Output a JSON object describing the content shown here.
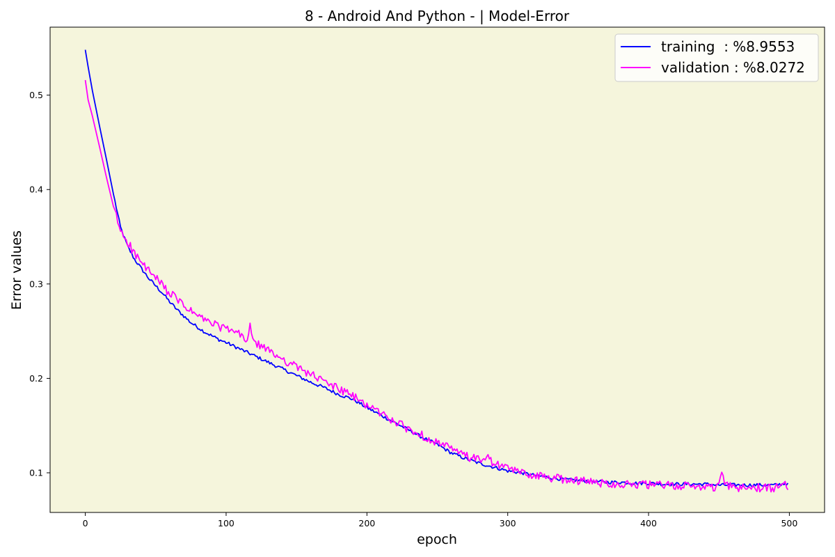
{
  "chart_data": {
    "type": "line",
    "title": "8 - Android And Python - | Model-Error",
    "xlabel": "epoch",
    "ylabel": "Error values",
    "xlim": [
      -25,
      525
    ],
    "ylim": [
      0.058,
      0.572
    ],
    "xticks": [
      0,
      100,
      200,
      300,
      400,
      500
    ],
    "yticks": [
      0.1,
      0.2,
      0.3,
      0.4,
      0.5
    ],
    "grid": false,
    "legend_position": "top-right",
    "background_color": "#f5f5dc",
    "series": [
      {
        "name": "training  : %8.9553",
        "color": "#0000ff",
        "x": [
          0,
          2,
          5,
          10,
          15,
          20,
          25,
          30,
          35,
          40,
          45,
          50,
          55,
          60,
          65,
          70,
          75,
          80,
          85,
          90,
          95,
          100,
          110,
          120,
          130,
          140,
          150,
          160,
          170,
          180,
          190,
          200,
          210,
          220,
          230,
          240,
          250,
          260,
          270,
          280,
          290,
          300,
          310,
          320,
          330,
          340,
          350,
          360,
          370,
          380,
          390,
          400,
          410,
          420,
          430,
          440,
          450,
          460,
          470,
          480,
          490,
          499
        ],
        "values": [
          0.548,
          0.53,
          0.505,
          0.468,
          0.432,
          0.395,
          0.36,
          0.34,
          0.326,
          0.316,
          0.306,
          0.298,
          0.29,
          0.281,
          0.273,
          0.266,
          0.259,
          0.254,
          0.249,
          0.245,
          0.241,
          0.238,
          0.231,
          0.224,
          0.217,
          0.21,
          0.203,
          0.196,
          0.19,
          0.183,
          0.178,
          0.169,
          0.161,
          0.153,
          0.145,
          0.137,
          0.13,
          0.121,
          0.115,
          0.11,
          0.106,
          0.102,
          0.1,
          0.097,
          0.095,
          0.093,
          0.092,
          0.091,
          0.09,
          0.09,
          0.089,
          0.089,
          0.088,
          0.088,
          0.088,
          0.088,
          0.087,
          0.087,
          0.087,
          0.087,
          0.087,
          0.089
        ]
      },
      {
        "name": "validation : %8.0272",
        "color": "#ff00ff",
        "x": [
          0,
          2,
          5,
          10,
          15,
          20,
          25,
          28,
          30,
          35,
          40,
          45,
          50,
          55,
          60,
          65,
          70,
          75,
          80,
          85,
          90,
          95,
          100,
          105,
          110,
          115,
          117,
          120,
          125,
          130,
          135,
          140,
          145,
          150,
          155,
          160,
          165,
          170,
          175,
          180,
          185,
          190,
          195,
          200,
          210,
          220,
          230,
          240,
          250,
          260,
          270,
          280,
          285,
          290,
          300,
          310,
          320,
          330,
          340,
          350,
          360,
          370,
          380,
          390,
          400,
          410,
          420,
          430,
          440,
          450,
          452,
          455,
          460,
          470,
          480,
          490,
          497,
          499
        ],
        "values": [
          0.516,
          0.495,
          0.478,
          0.446,
          0.413,
          0.382,
          0.356,
          0.35,
          0.345,
          0.332,
          0.322,
          0.314,
          0.306,
          0.298,
          0.29,
          0.284,
          0.277,
          0.271,
          0.266,
          0.262,
          0.258,
          0.255,
          0.252,
          0.25,
          0.246,
          0.24,
          0.256,
          0.236,
          0.235,
          0.229,
          0.225,
          0.221,
          0.216,
          0.212,
          0.208,
          0.205,
          0.2,
          0.196,
          0.193,
          0.189,
          0.185,
          0.181,
          0.176,
          0.172,
          0.163,
          0.154,
          0.146,
          0.139,
          0.132,
          0.125,
          0.118,
          0.113,
          0.118,
          0.109,
          0.105,
          0.1,
          0.097,
          0.095,
          0.093,
          0.092,
          0.09,
          0.089,
          0.088,
          0.088,
          0.087,
          0.087,
          0.086,
          0.086,
          0.085,
          0.085,
          0.099,
          0.087,
          0.084,
          0.084,
          0.084,
          0.083,
          0.095,
          0.082
        ]
      }
    ]
  }
}
